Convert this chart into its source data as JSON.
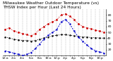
{
  "title": "Milwaukee Weather Outdoor Temperature (vs) THSW Index per Hour (Last 24 Hours)",
  "background_color": "#ffffff",
  "grid_color": "#888888",
  "ylim": [
    10,
    90
  ],
  "ytick_values": [
    20,
    30,
    40,
    50,
    60,
    70,
    80
  ],
  "hours": [
    0,
    1,
    2,
    3,
    4,
    5,
    6,
    7,
    8,
    9,
    10,
    11,
    12,
    13,
    14,
    15,
    16,
    17,
    18,
    19,
    20,
    21,
    22,
    23
  ],
  "temp": [
    55,
    58,
    52,
    50,
    48,
    46,
    44,
    48,
    55,
    60,
    65,
    68,
    72,
    80,
    82,
    78,
    72,
    65,
    60,
    58,
    56,
    54,
    52,
    50
  ],
  "thsw": [
    18,
    16,
    14,
    12,
    10,
    12,
    15,
    22,
    30,
    38,
    45,
    50,
    55,
    68,
    72,
    65,
    52,
    42,
    35,
    28,
    22,
    18,
    16,
    14
  ],
  "dew": [
    42,
    40,
    38,
    37,
    36,
    36,
    35,
    36,
    38,
    40,
    42,
    44,
    45,
    46,
    46,
    45,
    44,
    43,
    42,
    42,
    41,
    41,
    40,
    40
  ],
  "temp_color": "#cc0000",
  "thsw_color": "#0000cc",
  "dew_color": "#000000",
  "title_fontsize": 4.2,
  "tick_fontsize": 3.2,
  "label_fontsize": 3.0,
  "line_width": 0.7,
  "marker_size": 1.5
}
